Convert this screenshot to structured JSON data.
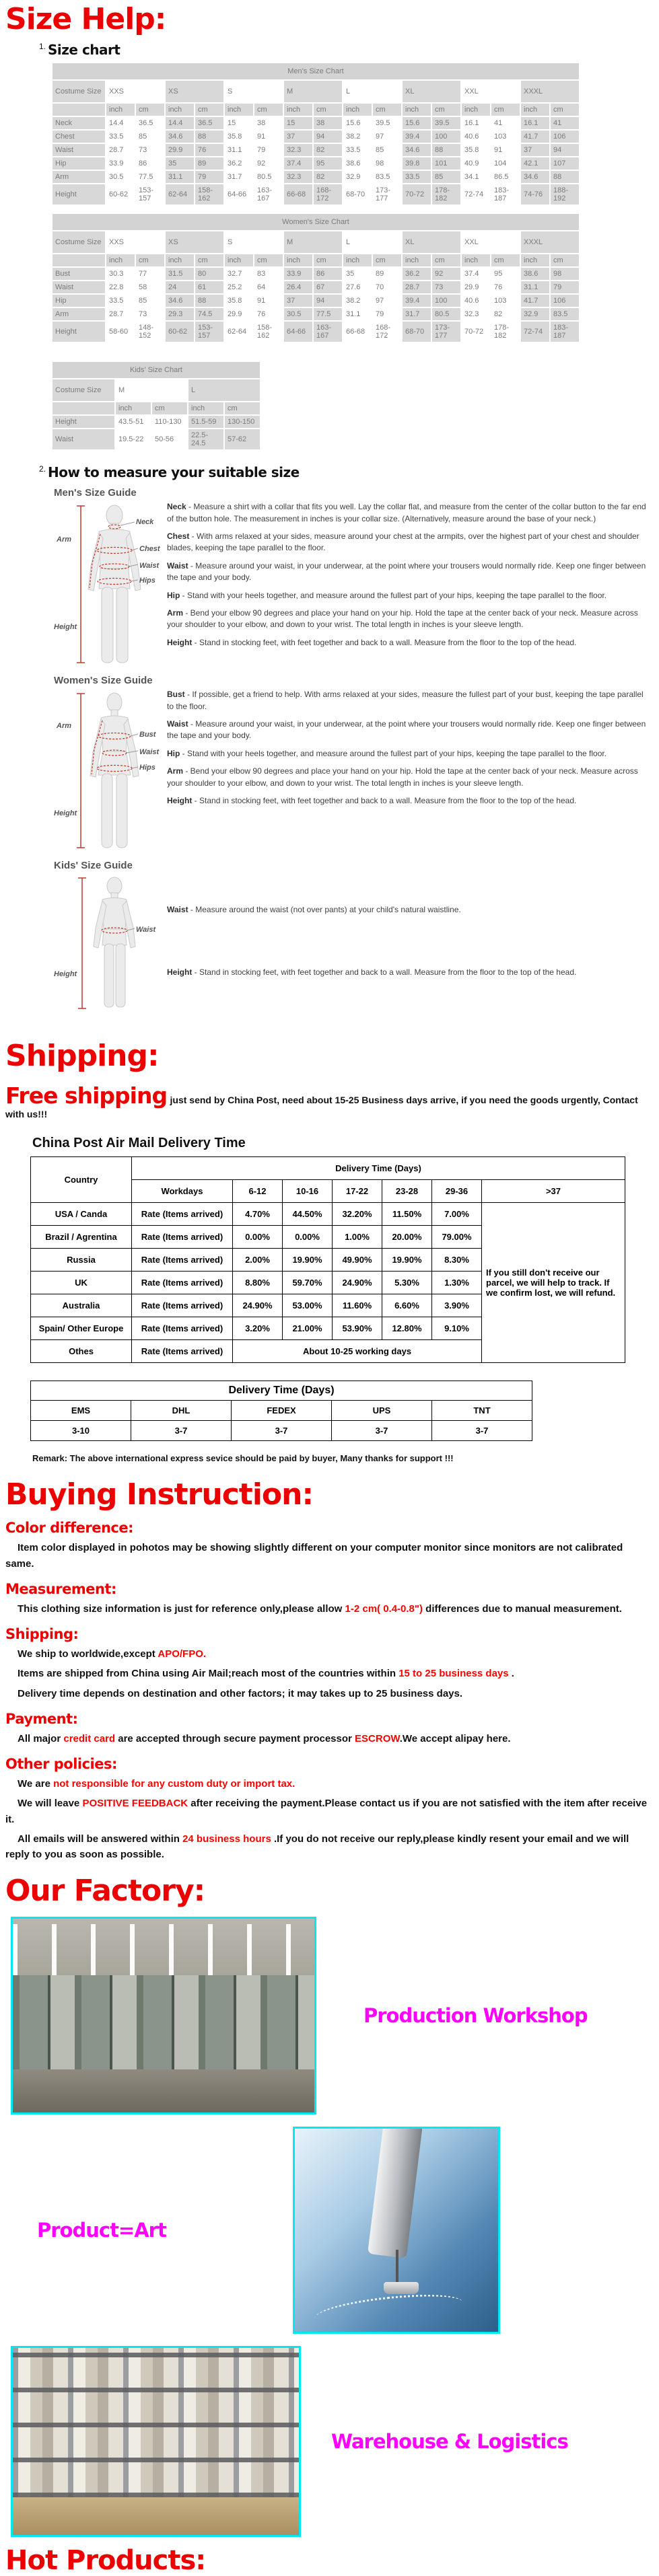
{
  "colors": {
    "heading_red": "#ed0000",
    "highlight_red": "#ff0000",
    "label_magenta": "#ff00ff",
    "photo_border_cyan": "#00e8f0",
    "table_cell_gray": "#d8d8d8"
  },
  "headings": {
    "size_help": "Size Help:",
    "shipping": "Shipping:",
    "buying_instruction": "Buying Instruction:",
    "our_factory": "Our Factory:",
    "hot_products": "Hot Products:"
  },
  "size_chart": {
    "section_number": "1.",
    "section_title": "Size chart",
    "units": [
      "inch",
      "cm"
    ],
    "mens": {
      "title": "Men's Size Chart",
      "corner": "Costume Size",
      "sizes": [
        "XXS",
        "XS",
        "S",
        "M",
        "L",
        "XL",
        "XXL",
        "XXXL"
      ],
      "rows": [
        {
          "label": "Neck",
          "values": [
            [
              "14.4",
              "36.5"
            ],
            [
              "14.4",
              "36.5"
            ],
            [
              "15",
              "38"
            ],
            [
              "15",
              "38"
            ],
            [
              "15.6",
              "39.5"
            ],
            [
              "15.6",
              "39.5"
            ],
            [
              "16.1",
              "41"
            ],
            [
              "16.1",
              "41"
            ]
          ]
        },
        {
          "label": "Chest",
          "values": [
            [
              "33.5",
              "85"
            ],
            [
              "34.6",
              "88"
            ],
            [
              "35.8",
              "91"
            ],
            [
              "37",
              "94"
            ],
            [
              "38.2",
              "97"
            ],
            [
              "39.4",
              "100"
            ],
            [
              "40.6",
              "103"
            ],
            [
              "41.7",
              "106"
            ]
          ]
        },
        {
          "label": "Waist",
          "values": [
            [
              "28.7",
              "73"
            ],
            [
              "29.9",
              "76"
            ],
            [
              "31.1",
              "79"
            ],
            [
              "32.3",
              "82"
            ],
            [
              "33.5",
              "85"
            ],
            [
              "34.6",
              "88"
            ],
            [
              "35.8",
              "91"
            ],
            [
              "37",
              "94"
            ]
          ]
        },
        {
          "label": "Hip",
          "values": [
            [
              "33.9",
              "86"
            ],
            [
              "35",
              "89"
            ],
            [
              "36.2",
              "92"
            ],
            [
              "37.4",
              "95"
            ],
            [
              "38.6",
              "98"
            ],
            [
              "39.8",
              "101"
            ],
            [
              "40.9",
              "104"
            ],
            [
              "42.1",
              "107"
            ]
          ]
        },
        {
          "label": "Arm",
          "values": [
            [
              "30.5",
              "77.5"
            ],
            [
              "31.1",
              "79"
            ],
            [
              "31.7",
              "80.5"
            ],
            [
              "32.3",
              "82"
            ],
            [
              "32.9",
              "83.5"
            ],
            [
              "33.5",
              "85"
            ],
            [
              "34.1",
              "86.5"
            ],
            [
              "34.6",
              "88"
            ]
          ]
        },
        {
          "label": "Height",
          "values": [
            [
              "60-62",
              "153-157"
            ],
            [
              "62-64",
              "158-162"
            ],
            [
              "64-66",
              "163-167"
            ],
            [
              "66-68",
              "168-172"
            ],
            [
              "68-70",
              "173-177"
            ],
            [
              "70-72",
              "178-182"
            ],
            [
              "72-74",
              "183-187"
            ],
            [
              "74-76",
              "188-192"
            ]
          ]
        }
      ]
    },
    "womens": {
      "title": "Women's Size Chart",
      "corner": "Costume Size",
      "sizes": [
        "XXS",
        "XS",
        "S",
        "M",
        "L",
        "XL",
        "XXL",
        "XXXL"
      ],
      "rows": [
        {
          "label": "Bust",
          "values": [
            [
              "30.3",
              "77"
            ],
            [
              "31.5",
              "80"
            ],
            [
              "32.7",
              "83"
            ],
            [
              "33.9",
              "86"
            ],
            [
              "35",
              "89"
            ],
            [
              "36.2",
              "92"
            ],
            [
              "37.4",
              "95"
            ],
            [
              "38.6",
              "98"
            ]
          ]
        },
        {
          "label": "Waist",
          "values": [
            [
              "22.8",
              "58"
            ],
            [
              "24",
              "61"
            ],
            [
              "25.2",
              "64"
            ],
            [
              "26.4",
              "67"
            ],
            [
              "27.6",
              "70"
            ],
            [
              "28.7",
              "73"
            ],
            [
              "29.9",
              "76"
            ],
            [
              "31.1",
              "79"
            ]
          ]
        },
        {
          "label": "Hip",
          "values": [
            [
              "33.5",
              "85"
            ],
            [
              "34.6",
              "88"
            ],
            [
              "35.8",
              "91"
            ],
            [
              "37",
              "94"
            ],
            [
              "38.2",
              "97"
            ],
            [
              "39.4",
              "100"
            ],
            [
              "40.6",
              "103"
            ],
            [
              "41.7",
              "106"
            ]
          ]
        },
        {
          "label": "Arm",
          "values": [
            [
              "28.7",
              "73"
            ],
            [
              "29.3",
              "74.5"
            ],
            [
              "29.9",
              "76"
            ],
            [
              "30.5",
              "77.5"
            ],
            [
              "31.1",
              "79"
            ],
            [
              "31.7",
              "80.5"
            ],
            [
              "32.3",
              "82"
            ],
            [
              "32.9",
              "83.5"
            ]
          ]
        },
        {
          "label": "Height",
          "values": [
            [
              "58-60",
              "148-152"
            ],
            [
              "60-62",
              "153-157"
            ],
            [
              "62-64",
              "158-162"
            ],
            [
              "64-66",
              "163-167"
            ],
            [
              "66-68",
              "168-172"
            ],
            [
              "68-70",
              "173-177"
            ],
            [
              "70-72",
              "178-182"
            ],
            [
              "72-74",
              "183-187"
            ]
          ]
        }
      ]
    },
    "kids": {
      "title": "Kids' Size Chart",
      "corner": "Costume Size",
      "sizes": [
        "M",
        "L"
      ],
      "rows": [
        {
          "label": "Height",
          "values": [
            [
              "43.5-51",
              "110-130"
            ],
            [
              "51.5-59",
              "130-150"
            ]
          ]
        },
        {
          "label": "Waist",
          "values": [
            [
              "19.5-22",
              "50-56"
            ],
            [
              "22.5-24.5",
              "57-62"
            ]
          ]
        }
      ]
    }
  },
  "measure_guide": {
    "section_number": "2.",
    "section_title": "How to measure your suitable size",
    "mens": {
      "title": "Men's Size Guide",
      "figure_labels": [
        "Neck",
        "Arm",
        "Chest",
        "Waist",
        "Hips",
        "Height"
      ],
      "items": [
        {
          "term": "Neck",
          "text": "- Measure a shirt with a collar that fits you well. Lay the collar flat, and measure from the center of the collar button to the far end of the button hole. The measurement in inches is your collar size. (Alternatively, measure around the base of your neck.)"
        },
        {
          "term": "Chest",
          "text": "- With arms relaxed at your sides, measure around your chest at the armpits, over the highest part of your chest and shoulder blades, keeping the tape parallel to the floor."
        },
        {
          "term": "Waist",
          "text": "- Measure around your waist, in your underwear, at the point where your trousers would normally ride. Keep one finger between the tape and your body."
        },
        {
          "term": "Hip",
          "text": "- Stand with your heels together, and measure around the fullest part of your hips, keeping the tape parallel to the floor."
        },
        {
          "term": "Arm",
          "text": "- Bend your elbow 90 degrees and place your hand on your hip. Hold the tape at the center back of your neck. Measure across your shoulder to your elbow, and down to your wrist. The total length in inches is your sleeve length."
        },
        {
          "term": "Height",
          "text": "- Stand in stocking feet, with feet together and back to a wall. Measure from the floor to the top of the head."
        }
      ]
    },
    "womens": {
      "title": "Women's Size Guide",
      "figure_labels": [
        "Arm",
        "Bust",
        "Waist",
        "Hips",
        "Height"
      ],
      "items": [
        {
          "term": "Bust",
          "text": "- If possible, get a friend to help. With arms relaxed at your sides, measure the fullest part of your bust, keeping the tape parallel to the floor."
        },
        {
          "term": "Waist",
          "text": "- Measure around your waist, in your underwear, at the point where your trousers would normally ride. Keep one finger between the tape and your body."
        },
        {
          "term": "Hip",
          "text": "- Stand with your heels together, and measure around the fullest part of your hips, keeping the tape parallel to the floor."
        },
        {
          "term": "Arm",
          "text": "- Bend your elbow 90 degrees and place your hand on your hip. Hold the tape at the center back of your neck. Measure across your shoulder to your elbow, and down to your wrist. The total length in inches is your sleeve length."
        },
        {
          "term": "Height",
          "text": "- Stand in stocking feet, with feet together and back to a wall. Measure from the floor to the top of the head."
        }
      ]
    },
    "kids": {
      "title": "Kids' Size Guide",
      "figure_labels": [
        "Waist",
        "Height"
      ],
      "items": [
        {
          "term": "Waist",
          "text": "- Measure around the waist (not over pants) at your child's natural waistline."
        },
        {
          "term": "Height",
          "text": "- Stand in stocking feet, with feet together and back to a wall. Measure from the floor to the top of the head."
        }
      ]
    }
  },
  "shipping": {
    "free_shipping_highlight": "Free shipping",
    "free_shipping_rest": "just send by China Post, need about 15-25 Business days arrive, if you need the goods urgently, Contact with us!!!",
    "table_title": "China Post Air Mail Delivery Time",
    "header": {
      "country": "Country",
      "delivery_time": "Delivery Time (Days)",
      "workdays": "Workdays",
      "bins": [
        "6-12",
        "10-16",
        "17-22",
        "23-28",
        "29-36"
      ],
      "over": ">37"
    },
    "rate_label": "Rate (Items arrived)",
    "rows": [
      {
        "country": "USA / Canda",
        "values": [
          "4.70%",
          "44.50%",
          "32.20%",
          "11.50%",
          "7.00%"
        ]
      },
      {
        "country": "Brazil / Agrentina",
        "values": [
          "0.00%",
          "0.00%",
          "1.00%",
          "20.00%",
          "79.00%"
        ]
      },
      {
        "country": "Russia",
        "values": [
          "2.00%",
          "19.90%",
          "49.90%",
          "19.90%",
          "8.30%"
        ]
      },
      {
        "country": "UK",
        "values": [
          "8.80%",
          "59.70%",
          "24.90%",
          "5.30%",
          "1.30%"
        ]
      },
      {
        "country": "Australia",
        "values": [
          "24.90%",
          "53.00%",
          "11.60%",
          "6.60%",
          "3.90%"
        ]
      },
      {
        "country": "Spain/ Other Europe",
        "values": [
          "3.20%",
          "21.00%",
          "53.90%",
          "12.80%",
          "9.10%"
        ]
      },
      {
        "country": "Othes",
        "merged": "About 10-25 working days"
      }
    ],
    "note": "If you still don't receive our parcel, we will help to track. If we confirm lost, we will refund.",
    "express_table": {
      "title": "Delivery Time (Days)",
      "carriers": [
        "EMS",
        "DHL",
        "FEDEX",
        "UPS",
        "TNT"
      ],
      "days": [
        "3-10",
        "3-7",
        "3-7",
        "3-7",
        "3-7"
      ]
    },
    "remark": "Remark: The above international express sevice should be paid by buyer, Many thanks for support !!!"
  },
  "buying": {
    "sections": [
      {
        "heading": "Color difference:",
        "paras": [
          [
            {
              "t": "Item color displayed in pohotos may be showing slightly different on your computer monitor since monitors are not calibrated same."
            }
          ]
        ]
      },
      {
        "heading": "Measurement:",
        "paras": [
          [
            {
              "t": "This clothing size information is just for reference only,please allow "
            },
            {
              "t": "1-2 cm( 0.4-0.8\")",
              "red": true
            },
            {
              "t": " differences due to manual measurement."
            }
          ]
        ]
      },
      {
        "heading": "Shipping:",
        "paras": [
          [
            {
              "t": "We ship to worldwide,except "
            },
            {
              "t": "APO/FPO.",
              "red": true
            }
          ],
          [
            {
              "t": "Items are shipped from China using Air Mail;reach most of the countries within "
            },
            {
              "t": "15 to 25 business days",
              "red": true
            },
            {
              "t": " ."
            }
          ],
          [
            {
              "t": "Delivery time depends on destination and other factors; it may takes up to 25 business days."
            }
          ]
        ]
      },
      {
        "heading": "Payment:",
        "paras": [
          [
            {
              "t": "All major "
            },
            {
              "t": "credit card",
              "red": true
            },
            {
              "t": " are accepted through secure payment processor "
            },
            {
              "t": "ESCROW",
              "red": true
            },
            {
              "t": ".We accept alipay here."
            }
          ]
        ]
      },
      {
        "heading": "Other policies:",
        "paras": [
          [
            {
              "t": "We are "
            },
            {
              "t": "not responsible for any custom duty or import tax.",
              "red": true
            }
          ],
          [
            {
              "t": "We will leave "
            },
            {
              "t": "POSITIVE FEEDBACK",
              "red": true
            },
            {
              "t": " after receiving the payment.Please contact us if you are not satisfied with the item after receive it."
            }
          ],
          [
            {
              "t": "All emails will be answered within "
            },
            {
              "t": "24 business hours",
              "red": true
            },
            {
              "t": " .If you do not receive our reply,please kindly resent your email and we will reply to you as soon as possible."
            }
          ]
        ]
      }
    ]
  },
  "factory": {
    "labels": {
      "workshop": "Production Workshop",
      "product_art": "Product=Art",
      "warehouse": "Warehouse & Logistics"
    }
  }
}
